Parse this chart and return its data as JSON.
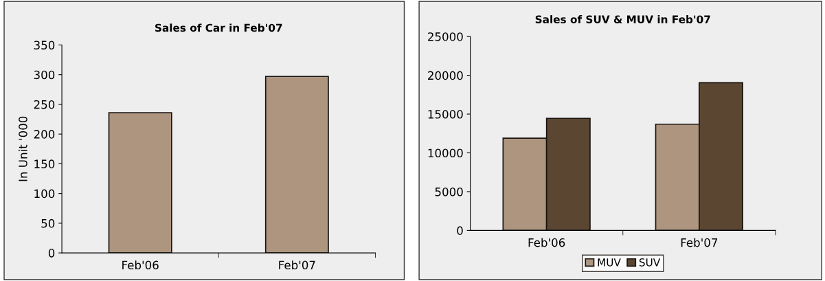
{
  "chart_data": [
    {
      "type": "bar",
      "title": "Sales of Car in Feb'07",
      "ylabel": "In Unit '000",
      "categories": [
        "Feb'06",
        "Feb'07"
      ],
      "values": [
        236,
        297
      ],
      "color": "#ad9580",
      "ylim": [
        0,
        350
      ],
      "yticks": [
        0,
        50,
        100,
        150,
        200,
        250,
        300,
        350
      ],
      "grid": false,
      "legend": false
    },
    {
      "type": "bar",
      "title": "Sales of SUV & MUV in Feb'07",
      "categories": [
        "Feb'06",
        "Feb'07"
      ],
      "series": [
        {
          "name": "MUV",
          "color": "#ad9580",
          "values": [
            11900,
            13700
          ]
        },
        {
          "name": "SUV",
          "color": "#5a4631",
          "values": [
            14450,
            19050
          ]
        }
      ],
      "ylim": [
        0,
        25000
      ],
      "yticks": [
        0,
        5000,
        10000,
        15000,
        20000,
        25000
      ],
      "grid": false,
      "legend": "bottom"
    }
  ]
}
